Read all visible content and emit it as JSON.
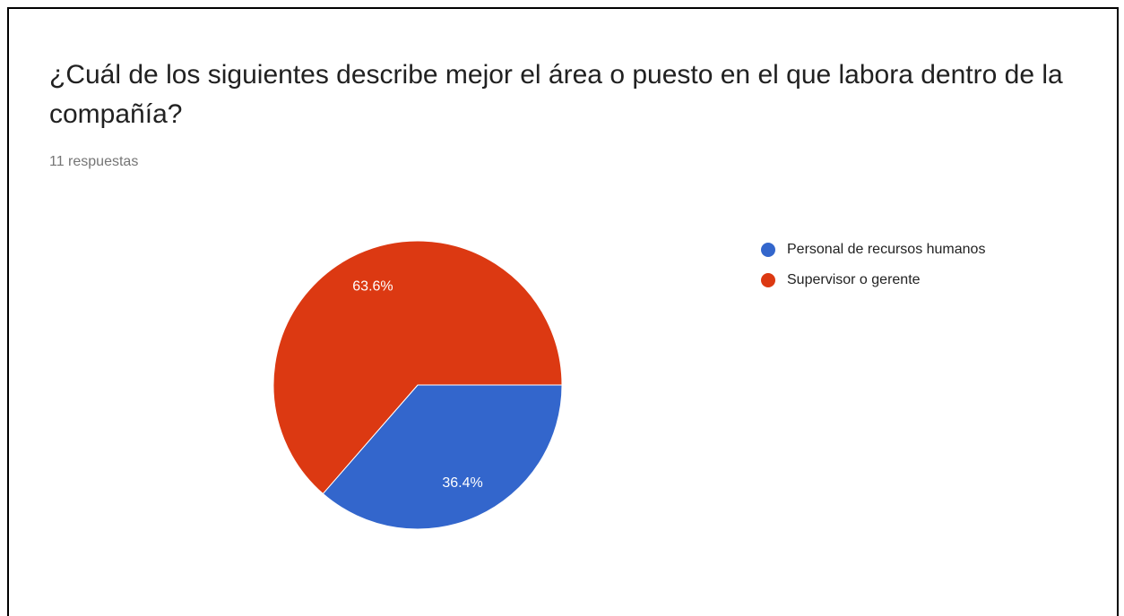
{
  "chart_data": {
    "type": "pie",
    "title": "¿Cuál de los siguientes describe mejor el área o puesto en el que labora dentro de la compañía?",
    "subtitle": "11 respuestas",
    "categories": [
      "Personal de recursos humanos",
      "Supervisor o gerente"
    ],
    "values": [
      36.4,
      63.6
    ],
    "value_labels": [
      "36.4%",
      "63.6%"
    ],
    "colors": [
      "#3366cc",
      "#dc3912"
    ],
    "legend": "right"
  }
}
